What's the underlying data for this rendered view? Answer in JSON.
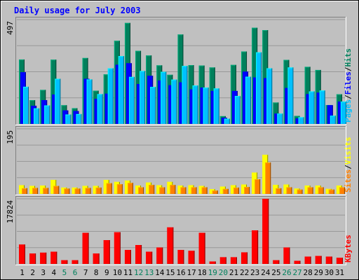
{
  "chart_data": [
    {
      "type": "bar",
      "title": "Daily usage for July 2003",
      "categories": [
        "1",
        "2",
        "3",
        "4",
        "5",
        "6",
        "7",
        "8",
        "9",
        "10",
        "11",
        "12",
        "13",
        "14",
        "15",
        "16",
        "17",
        "18",
        "19",
        "20",
        "21",
        "22",
        "23",
        "24",
        "25",
        "26",
        "27",
        "28",
        "29",
        "30",
        "31"
      ],
      "weekend_days": [
        "5",
        "6",
        "12",
        "13",
        "19",
        "20",
        "26",
        "27"
      ],
      "ylim": [
        0,
        497
      ],
      "ytick_label": "497",
      "series": [
        {
          "name": "Hits",
          "color": "#00805C",
          "values": [
            307,
            113,
            162,
            306,
            89,
            75,
            314,
            158,
            236,
            396,
            481,
            348,
            326,
            279,
            234,
            426,
            280,
            278,
            269,
            37,
            281,
            345,
            458,
            447,
            102,
            305,
            38,
            272,
            257,
            90,
            141
          ]
        },
        {
          "name": "Files",
          "color": "#0000FF",
          "values": [
            246,
            86,
            113,
            140,
            64,
            61,
            215,
            119,
            144,
            282,
            289,
            190,
            229,
            207,
            184,
            198,
            164,
            173,
            157,
            29,
            157,
            249,
            221,
            218,
            49,
            171,
            26,
            142,
            149,
            89,
            106
          ]
        },
        {
          "name": "Pages",
          "color": "#00C0FF",
          "values": [
            177,
            74,
            88,
            215,
            45,
            47,
            212,
            142,
            265,
            323,
            224,
            252,
            176,
            248,
            211,
            276,
            183,
            173,
            169,
            25,
            133,
            225,
            341,
            265,
            49,
            269,
            32,
            155,
            159,
            39,
            106
          ]
        }
      ],
      "right_label": [
        "Pages",
        "Files",
        "Hits"
      ]
    },
    {
      "type": "bar",
      "categories": [
        "1",
        "2",
        "3",
        "4",
        "5",
        "6",
        "7",
        "8",
        "9",
        "10",
        "11",
        "12",
        "13",
        "14",
        "15",
        "16",
        "17",
        "18",
        "19",
        "20",
        "21",
        "22",
        "23",
        "24",
        "25",
        "26",
        "27",
        "28",
        "29",
        "30",
        "31"
      ],
      "ylim": [
        0,
        195
      ],
      "ytick_label": "195",
      "series": [
        {
          "name": "Visits",
          "color": "#FFFF00",
          "values": [
            26,
            24,
            25,
            42,
            19,
            19,
            24,
            24,
            42,
            36,
            40,
            25,
            34,
            26,
            36,
            25,
            26,
            24,
            14,
            22,
            26,
            28,
            64,
            117,
            27,
            28,
            16,
            25,
            25,
            15,
            25
          ]
        },
        {
          "name": "Sites",
          "color": "#FF8000",
          "values": [
            17,
            18,
            18,
            24,
            16,
            16,
            18,
            19,
            32,
            29,
            33,
            20,
            27,
            20,
            27,
            20,
            20,
            20,
            10,
            15,
            19,
            21,
            44,
            94,
            17,
            20,
            13,
            20,
            20,
            13,
            20
          ]
        }
      ],
      "right_label": [
        "Sites",
        "Visits"
      ]
    },
    {
      "type": "bar",
      "categories": [
        "1",
        "2",
        "3",
        "4",
        "5",
        "6",
        "7",
        "8",
        "9",
        "10",
        "11",
        "12",
        "13",
        "14",
        "15",
        "16",
        "17",
        "18",
        "19",
        "20",
        "21",
        "22",
        "23",
        "24",
        "25",
        "26",
        "27",
        "28",
        "29",
        "30",
        "31"
      ],
      "ylim": [
        0,
        17824
      ],
      "ytick_label": "17824",
      "series": [
        {
          "name": "KBytes",
          "color": "#FF0000",
          "values": [
            5300,
            2833,
            3083,
            3333,
            1000,
            1000,
            8500,
            2833,
            6500,
            8667,
            3833,
            5167,
            3333,
            4500,
            10000,
            3833,
            3583,
            8500,
            667,
            1833,
            1833,
            3167,
            9167,
            17824,
            1000,
            4500,
            833,
            2000,
            2167,
            2000,
            1667
          ]
        }
      ],
      "right_label": [
        "KBytes"
      ]
    }
  ],
  "colors": {
    "page_bg": "#C0C0C0",
    "plot_bg": "#C0C0C0",
    "title": "#0000FF",
    "weekday_label": "#000000",
    "weekend_label": "#00805C",
    "gridline": "#808080"
  }
}
